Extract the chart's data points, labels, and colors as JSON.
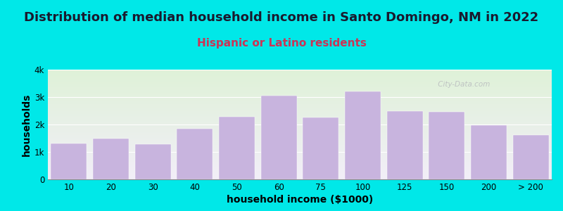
{
  "title": "Distribution of median household income in Santo Domingo, NM in 2022",
  "subtitle": "Hispanic or Latino residents",
  "xlabel": "household income ($1000)",
  "ylabel": "households",
  "bar_color": "#c8b4de",
  "background_outer": "#00e8e8",
  "background_inner_top": "#dff2d8",
  "background_inner_bottom": "#f2eef8",
  "watermark": " City-Data.com",
  "title_color": "#1a1a2e",
  "subtitle_color": "#cc3355",
  "categories": [
    "10",
    "20",
    "30",
    "40",
    "50",
    "60",
    "75",
    "100",
    "125",
    "150",
    "200",
    "> 200"
  ],
  "values": [
    1300,
    1500,
    1280,
    1850,
    2280,
    3050,
    2250,
    3200,
    2500,
    2470,
    1980,
    1620
  ],
  "ylim": [
    0,
    4000
  ],
  "yticks": [
    0,
    1000,
    2000,
    3000,
    4000
  ],
  "ytick_labels": [
    "0",
    "1k",
    "2k",
    "3k",
    "4k"
  ],
  "title_fontsize": 13,
  "subtitle_fontsize": 11,
  "axis_label_fontsize": 10,
  "tick_fontsize": 8.5
}
